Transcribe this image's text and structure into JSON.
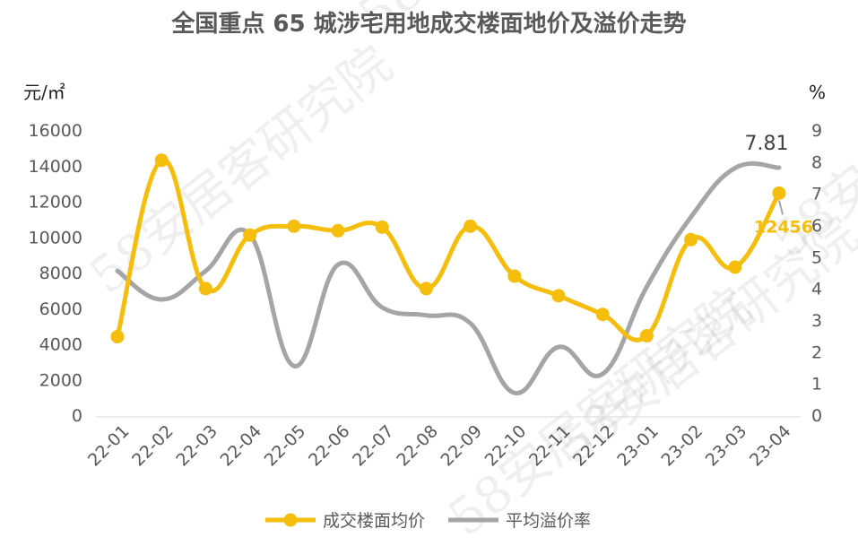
{
  "title": "全国重点 65 城涉宅用地成交楼面地价及溢价走势",
  "watermark": "58安居客研究院",
  "colors": {
    "floor_price": "#F5BD0C",
    "premium_rate": "#A5A5A5",
    "text": "#595959"
  },
  "chart_data": {
    "type": "line",
    "categories": [
      "22-01",
      "22-02",
      "22-03",
      "22-04",
      "22-05",
      "22-06",
      "22-07",
      "22-08",
      "22-09",
      "22-10",
      "22-11",
      "22-12",
      "23-01",
      "23-02",
      "23-03",
      "23-04"
    ],
    "y_left_unit": "元/㎡",
    "y_right_unit": "%",
    "y_left_ticks": [
      "0",
      "2000",
      "4000",
      "6000",
      "8000",
      "10000",
      "12000",
      "14000",
      "16000"
    ],
    "y_right_ticks": [
      "0",
      "1",
      "2",
      "3",
      "4",
      "5",
      "6",
      "7",
      "8",
      "9"
    ],
    "ylim_left": [
      0,
      16000
    ],
    "ylim_right": [
      0,
      9
    ],
    "series": [
      {
        "name": "成交楼面均价",
        "axis": "left",
        "marker": "circle",
        "values": [
          4400,
          14300,
          7100,
          10100,
          10600,
          10350,
          10550,
          7100,
          10600,
          7800,
          6700,
          5650,
          4450,
          9850,
          8300,
          12456
        ]
      },
      {
        "name": "平均溢价率",
        "axis": "right",
        "marker": "none",
        "values": [
          4.55,
          3.65,
          4.55,
          5.7,
          1.55,
          4.75,
          3.4,
          3.15,
          2.9,
          0.7,
          2.15,
          1.3,
          4.05,
          6.25,
          7.8,
          7.81
        ]
      }
    ],
    "annotations": [
      {
        "series": "平均溢价率",
        "category": "23-04",
        "text": "7.81"
      },
      {
        "series": "成交楼面均价",
        "category": "23-04",
        "text": "12456"
      }
    ],
    "legend_position": "bottom-center",
    "grid": false
  }
}
